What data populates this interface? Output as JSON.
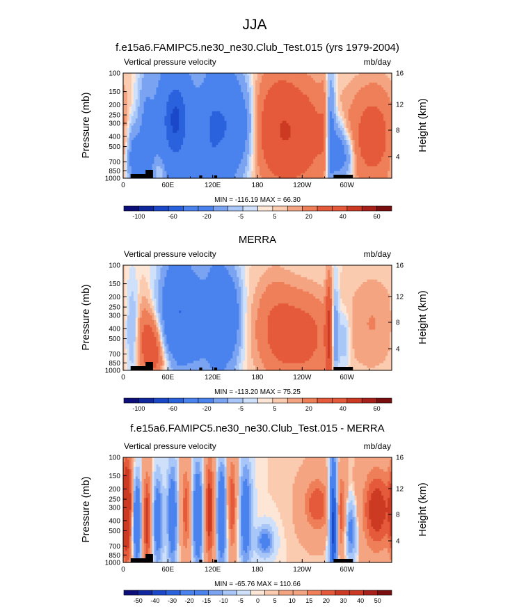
{
  "figure_title": "JJA",
  "chart_data": [
    {
      "type": "heatmap",
      "title": "f.e15a6.FAMIPC5.ne30_ne30.Club_Test.015 (yrs 1979-2004)",
      "left_label": "Vertical pressure velocity",
      "right_label": "mb/day",
      "ylabel": "Pressure (mb)",
      "ylabel_right": "Height (km)",
      "x_tick_labels": [
        "0",
        "60E",
        "120E",
        "180",
        "120W",
        "60W"
      ],
      "y_tick_labels": [
        "100",
        "150",
        "200",
        "250",
        "300",
        "400",
        "500",
        "700",
        "850",
        "1000"
      ],
      "y_right_tick_labels": [
        "16",
        "12",
        "8",
        "4"
      ],
      "min_max_text": "MIN = -116.19  MAX =  66.30",
      "colorbar_labels": [
        "-100",
        "-60",
        "-20",
        "-5",
        "5",
        "20",
        "40",
        "60"
      ],
      "colorbar_levels": [
        -120,
        -100,
        -80,
        -60,
        -40,
        -20,
        -10,
        -5,
        -1,
        1,
        5,
        10,
        20,
        30,
        40,
        50,
        60
      ],
      "min": -116.19,
      "max": 66.3,
      "fields": [
        {
          "lon": 25,
          "y": 0.85,
          "sx": 12,
          "sy": 0.2,
          "v": -25
        },
        {
          "lon": 30,
          "y": 0.45,
          "sx": 8,
          "sy": 0.35,
          "v": -20
        },
        {
          "lon": 12,
          "y": 0.75,
          "sx": 6,
          "sy": 0.25,
          "v": -18
        },
        {
          "lon": 70,
          "y": 0.45,
          "sx": 16,
          "sy": 0.36,
          "v": -85
        },
        {
          "lon": 100,
          "y": 0.7,
          "sx": 8,
          "sy": 0.3,
          "v": -25
        },
        {
          "lon": 118,
          "y": 0.55,
          "sx": 10,
          "sy": 0.4,
          "v": -45
        },
        {
          "lon": 140,
          "y": 0.5,
          "sx": 14,
          "sy": 0.38,
          "v": -55
        },
        {
          "lon": 165,
          "y": 0.5,
          "sx": 10,
          "sy": 0.3,
          "v": -18
        },
        {
          "lon": 230,
          "y": 0.58,
          "sx": 35,
          "sy": 0.38,
          "v": 32
        },
        {
          "lon": 205,
          "y": 0.45,
          "sx": 20,
          "sy": 0.4,
          "v": 14
        },
        {
          "lon": 278,
          "y": 0.6,
          "sx": 5,
          "sy": 0.4,
          "v": -38
        },
        {
          "lon": 290,
          "y": 0.75,
          "sx": 6,
          "sy": 0.2,
          "v": -35
        },
        {
          "lon": 302,
          "y": 0.8,
          "sx": 6,
          "sy": 0.15,
          "v": -20
        },
        {
          "lon": 335,
          "y": 0.6,
          "sx": 22,
          "sy": 0.35,
          "v": 28
        },
        {
          "lon": 270,
          "y": 0.55,
          "sx": 4,
          "sy": 0.4,
          "v": 10
        },
        {
          "lon": 50,
          "y": 0.9,
          "sx": 6,
          "sy": 0.1,
          "v": 12
        }
      ]
    },
    {
      "type": "heatmap",
      "title": "MERRA",
      "left_label": "Vertical pressure velocity",
      "right_label": "mb/day",
      "ylabel": "Pressure (mb)",
      "ylabel_right": "Height (km)",
      "x_tick_labels": [
        "0",
        "60E",
        "120E",
        "180",
        "120W",
        "60W"
      ],
      "y_tick_labels": [
        "100",
        "150",
        "200",
        "250",
        "300",
        "400",
        "500",
        "700",
        "850",
        "1000"
      ],
      "y_right_tick_labels": [
        "16",
        "12",
        "8",
        "4"
      ],
      "min_max_text": "MIN = -113.20  MAX =  75.25",
      "colorbar_labels": [
        "-100",
        "-60",
        "-20",
        "-5",
        "5",
        "20",
        "40",
        "60"
      ],
      "colorbar_levels": [
        -120,
        -100,
        -80,
        -60,
        -40,
        -20,
        -10,
        -5,
        -1,
        1,
        5,
        10,
        20,
        30,
        40,
        50,
        60
      ],
      "min": -113.2,
      "max": 75.25,
      "fields": [
        {
          "lon": 40,
          "y": 0.8,
          "sx": 10,
          "sy": 0.2,
          "v": 30
        },
        {
          "lon": 28,
          "y": 0.65,
          "sx": 8,
          "sy": 0.25,
          "v": 12
        },
        {
          "lon": 12,
          "y": 0.6,
          "sx": 6,
          "sy": 0.3,
          "v": -15
        },
        {
          "lon": 75,
          "y": 0.45,
          "sx": 16,
          "sy": 0.36,
          "v": -60
        },
        {
          "lon": 100,
          "y": 0.55,
          "sx": 8,
          "sy": 0.3,
          "v": -18
        },
        {
          "lon": 125,
          "y": 0.5,
          "sx": 12,
          "sy": 0.4,
          "v": -45
        },
        {
          "lon": 145,
          "y": 0.5,
          "sx": 10,
          "sy": 0.3,
          "v": -30
        },
        {
          "lon": 235,
          "y": 0.68,
          "sx": 32,
          "sy": 0.3,
          "v": 28
        },
        {
          "lon": 200,
          "y": 0.5,
          "sx": 18,
          "sy": 0.35,
          "v": 10
        },
        {
          "lon": 276,
          "y": 0.65,
          "sx": 3,
          "sy": 0.35,
          "v": 40
        },
        {
          "lon": 284,
          "y": 0.65,
          "sx": 4,
          "sy": 0.3,
          "v": -25
        },
        {
          "lon": 296,
          "y": 0.7,
          "sx": 6,
          "sy": 0.2,
          "v": -15
        },
        {
          "lon": 335,
          "y": 0.55,
          "sx": 25,
          "sy": 0.35,
          "v": 10
        },
        {
          "lon": 60,
          "y": 0.92,
          "sx": 10,
          "sy": 0.1,
          "v": 8
        }
      ]
    },
    {
      "type": "heatmap",
      "title": "f.e15a6.FAMIPC5.ne30_ne30.Club_Test.015 - MERRA",
      "left_label": "Vertical pressure velocity",
      "right_label": "mb/day",
      "ylabel": "Pressure (mb)",
      "ylabel_right": "Height (km)",
      "x_tick_labels": [
        "0",
        "60E",
        "120E",
        "180",
        "120W",
        "60W"
      ],
      "y_tick_labels": [
        "100",
        "150",
        "200",
        "250",
        "300",
        "400",
        "500",
        "700",
        "850",
        "1000"
      ],
      "y_right_tick_labels": [
        "16",
        "12",
        "8",
        "4"
      ],
      "min_max_text": "MIN = -65.76  MAX = 110.66",
      "colorbar_labels": [
        "-50",
        "-40",
        "-30",
        "-20",
        "-15",
        "-10",
        "-5",
        "0",
        "5",
        "10",
        "15",
        "20",
        "30",
        "40",
        "50"
      ],
      "colorbar_levels": [
        -60,
        -50,
        -40,
        -30,
        -20,
        -15,
        -10,
        -5,
        -1,
        0,
        1,
        5,
        10,
        15,
        20,
        30,
        40,
        50
      ],
      "min": -65.76,
      "max": 110.66,
      "fields": [
        {
          "lon": 6,
          "y": 0.5,
          "sx": 6,
          "sy": 0.4,
          "v": 30
        },
        {
          "lon": 18,
          "y": 0.6,
          "sx": 5,
          "sy": 0.3,
          "v": -35
        },
        {
          "lon": 32,
          "y": 0.6,
          "sx": 5,
          "sy": 0.35,
          "v": 25
        },
        {
          "lon": 46,
          "y": 0.6,
          "sx": 5,
          "sy": 0.3,
          "v": -25
        },
        {
          "lon": 66,
          "y": 0.55,
          "sx": 5,
          "sy": 0.35,
          "v": -25
        },
        {
          "lon": 84,
          "y": 0.5,
          "sx": 5,
          "sy": 0.35,
          "v": 18
        },
        {
          "lon": 100,
          "y": 0.55,
          "sx": 5,
          "sy": 0.35,
          "v": -30
        },
        {
          "lon": 116,
          "y": 0.5,
          "sx": 5,
          "sy": 0.4,
          "v": 25
        },
        {
          "lon": 132,
          "y": 0.55,
          "sx": 5,
          "sy": 0.35,
          "v": -30
        },
        {
          "lon": 146,
          "y": 0.45,
          "sx": 5,
          "sy": 0.35,
          "v": 20
        },
        {
          "lon": 164,
          "y": 0.55,
          "sx": 6,
          "sy": 0.35,
          "v": -25
        },
        {
          "lon": 190,
          "y": 0.8,
          "sx": 8,
          "sy": 0.1,
          "v": -20
        },
        {
          "lon": 260,
          "y": 0.45,
          "sx": 14,
          "sy": 0.2,
          "v": 20
        },
        {
          "lon": 282,
          "y": 0.6,
          "sx": 4,
          "sy": 0.4,
          "v": -50
        },
        {
          "lon": 292,
          "y": 0.55,
          "sx": 5,
          "sy": 0.3,
          "v": 20
        },
        {
          "lon": 305,
          "y": 0.7,
          "sx": 6,
          "sy": 0.2,
          "v": -20
        },
        {
          "lon": 340,
          "y": 0.5,
          "sx": 15,
          "sy": 0.3,
          "v": 25
        }
      ]
    }
  ]
}
